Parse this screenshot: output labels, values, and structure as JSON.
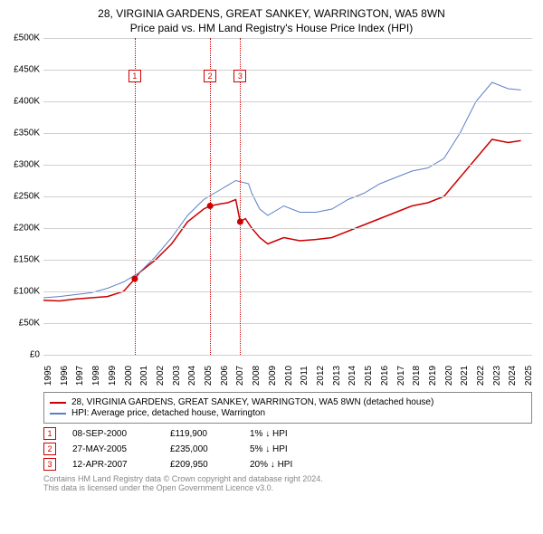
{
  "title": {
    "line1": "28, VIRGINIA GARDENS, GREAT SANKEY, WARRINGTON, WA5 8WN",
    "line2": "Price paid vs. HM Land Registry's House Price Index (HPI)"
  },
  "chart": {
    "type": "line",
    "background_color": "#ffffff",
    "grid_color": "#d0d0d0",
    "axis_color": "#888888",
    "x_years": [
      1995,
      1996,
      1997,
      1998,
      1999,
      2000,
      2001,
      2002,
      2003,
      2004,
      2005,
      2006,
      2007,
      2008,
      2009,
      2010,
      2011,
      2012,
      2013,
      2014,
      2015,
      2016,
      2017,
      2018,
      2019,
      2020,
      2021,
      2022,
      2023,
      2024,
      2025
    ],
    "xlim": [
      1995,
      2025.5
    ],
    "ylim": [
      0,
      500000
    ],
    "ytick_step": 50000,
    "yticks": [
      "£0",
      "£50K",
      "£100K",
      "£150K",
      "£200K",
      "£250K",
      "£300K",
      "£350K",
      "£400K",
      "£450K",
      "£500K"
    ],
    "label_fontsize": 10,
    "series": [
      {
        "name": "property",
        "label": "28, VIRGINIA GARDENS, GREAT SANKEY, WARRINGTON, WA5 8WN (detached house)",
        "color": "#cc0000",
        "line_width": 1.5,
        "data": [
          [
            1995,
            86000
          ],
          [
            1996,
            85000
          ],
          [
            1997,
            88000
          ],
          [
            1998,
            90000
          ],
          [
            1999,
            92000
          ],
          [
            2000,
            100000
          ],
          [
            2000.7,
            119900
          ],
          [
            2001,
            130000
          ],
          [
            2002,
            150000
          ],
          [
            2003,
            175000
          ],
          [
            2004,
            210000
          ],
          [
            2005,
            230000
          ],
          [
            2005.4,
            235000
          ],
          [
            2006,
            238000
          ],
          [
            2006.5,
            240000
          ],
          [
            2007,
            245000
          ],
          [
            2007.28,
            209950
          ],
          [
            2007.6,
            215000
          ],
          [
            2008,
            200000
          ],
          [
            2008.5,
            185000
          ],
          [
            2009,
            175000
          ],
          [
            2009.5,
            180000
          ],
          [
            2010,
            185000
          ],
          [
            2011,
            180000
          ],
          [
            2012,
            182000
          ],
          [
            2013,
            185000
          ],
          [
            2014,
            195000
          ],
          [
            2015,
            205000
          ],
          [
            2016,
            215000
          ],
          [
            2017,
            225000
          ],
          [
            2018,
            235000
          ],
          [
            2019,
            240000
          ],
          [
            2020,
            250000
          ],
          [
            2021,
            280000
          ],
          [
            2022,
            310000
          ],
          [
            2023,
            340000
          ],
          [
            2024,
            335000
          ],
          [
            2024.8,
            338000
          ]
        ]
      },
      {
        "name": "hpi",
        "label": "HPI: Average price, detached house, Warrington",
        "color": "#5b7fc7",
        "line_width": 1,
        "data": [
          [
            1995,
            90000
          ],
          [
            1996,
            92000
          ],
          [
            1997,
            95000
          ],
          [
            1998,
            98000
          ],
          [
            1999,
            105000
          ],
          [
            2000,
            115000
          ],
          [
            2001,
            130000
          ],
          [
            2002,
            155000
          ],
          [
            2003,
            185000
          ],
          [
            2004,
            220000
          ],
          [
            2005,
            245000
          ],
          [
            2006,
            260000
          ],
          [
            2007,
            275000
          ],
          [
            2007.8,
            270000
          ],
          [
            2008,
            255000
          ],
          [
            2008.5,
            230000
          ],
          [
            2009,
            220000
          ],
          [
            2010,
            235000
          ],
          [
            2011,
            225000
          ],
          [
            2012,
            225000
          ],
          [
            2013,
            230000
          ],
          [
            2014,
            245000
          ],
          [
            2015,
            255000
          ],
          [
            2016,
            270000
          ],
          [
            2017,
            280000
          ],
          [
            2018,
            290000
          ],
          [
            2019,
            295000
          ],
          [
            2020,
            310000
          ],
          [
            2021,
            350000
          ],
          [
            2022,
            400000
          ],
          [
            2023,
            430000
          ],
          [
            2024,
            420000
          ],
          [
            2024.8,
            418000
          ]
        ]
      }
    ],
    "markers": [
      {
        "num": "1",
        "year": 2000.7,
        "box_y": 440000,
        "dot_y": 119900
      },
      {
        "num": "2",
        "year": 2005.4,
        "box_y": 440000,
        "dot_y": 235000
      },
      {
        "num": "3",
        "year": 2007.28,
        "box_y": 440000,
        "dot_y": 209950
      }
    ],
    "marker_color": "#cc0000"
  },
  "sales": [
    {
      "num": "1",
      "date": "08-SEP-2000",
      "price": "£119,900",
      "diff": "1% ↓ HPI"
    },
    {
      "num": "2",
      "date": "27-MAY-2005",
      "price": "£235,000",
      "diff": "5% ↓ HPI"
    },
    {
      "num": "3",
      "date": "12-APR-2007",
      "price": "£209,950",
      "diff": "20% ↓ HPI"
    }
  ],
  "footnote": {
    "line1": "Contains HM Land Registry data © Crown copyright and database right 2024.",
    "line2": "This data is licensed under the Open Government Licence v3.0."
  }
}
